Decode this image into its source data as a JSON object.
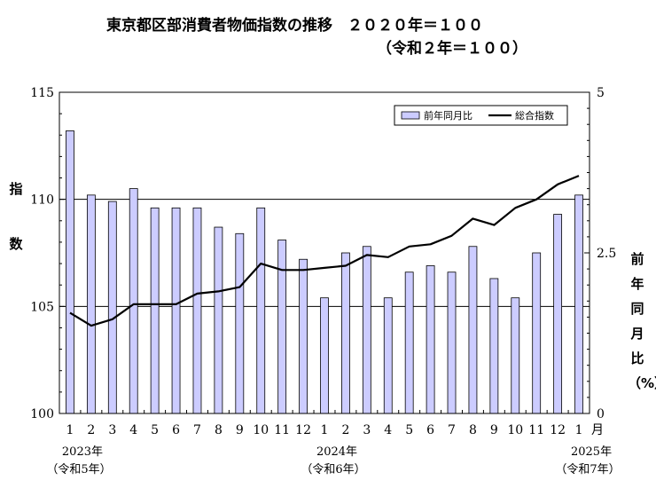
{
  "chart_data": {
    "type": "bar+line",
    "title": "東京都区部消費者物価指数の推移　２０２０年＝１００",
    "subtitle": "（令和２年＝１００）",
    "ylabel_left": "指数",
    "ylabel_right": "前年同月比（%）",
    "categories": [
      "1",
      "2",
      "3",
      "4",
      "5",
      "6",
      "7",
      "8",
      "9",
      "10",
      "11",
      "12",
      "1",
      "2",
      "3",
      "4",
      "5",
      "6",
      "7",
      "8",
      "9",
      "10",
      "11",
      "12",
      "1"
    ],
    "month_unit": "月",
    "years": [
      {
        "label": "2023年",
        "sub": "（令和5年）"
      },
      {
        "label": "2024年",
        "sub": "（令和6年）"
      },
      {
        "label": "2025年",
        "sub": "（令和7年）"
      }
    ],
    "y_left": {
      "lim": [
        100,
        115
      ],
      "ticks": [
        "100",
        "105",
        "110",
        "115"
      ],
      "gridlines": [
        105,
        110
      ]
    },
    "y_right": {
      "lim": [
        0,
        5
      ],
      "ticks": [
        "0",
        "2.5",
        "5"
      ]
    },
    "series": [
      {
        "name": "前年同月比",
        "type": "bar",
        "axis": "right",
        "color": "#ccccff",
        "values": [
          4.4,
          3.4,
          3.3,
          3.5,
          3.2,
          3.2,
          3.2,
          2.9,
          2.8,
          3.2,
          2.7,
          2.4,
          1.8,
          2.5,
          2.6,
          1.8,
          2.2,
          2.3,
          2.2,
          2.6,
          2.1,
          1.8,
          2.5,
          3.1,
          3.4
        ]
      },
      {
        "name": "総合指数",
        "type": "line",
        "axis": "left",
        "color": "#000000",
        "values": [
          104.7,
          104.1,
          104.4,
          105.1,
          105.1,
          105.1,
          105.6,
          105.7,
          105.9,
          107.0,
          106.7,
          106.7,
          106.8,
          106.9,
          107.4,
          107.3,
          107.8,
          107.9,
          108.3,
          109.1,
          108.8,
          109.6,
          110.0,
          110.7,
          111.1
        ]
      }
    ],
    "legend": {
      "placement": "top-right"
    }
  }
}
